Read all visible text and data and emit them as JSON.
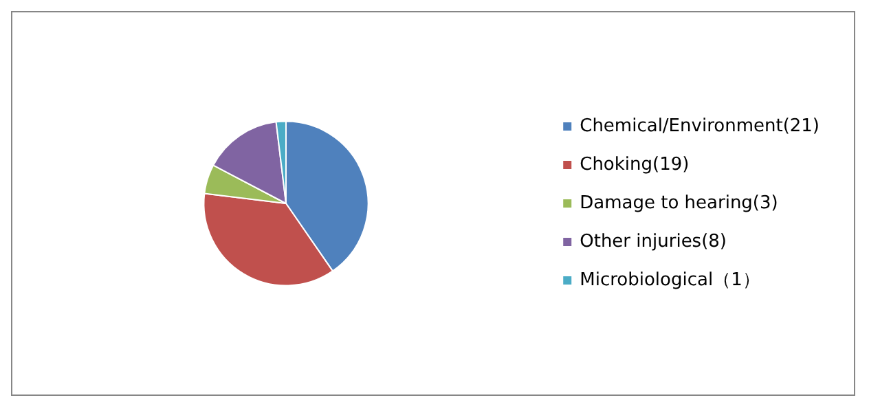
{
  "chart_data": {
    "type": "pie",
    "categories": [
      "Chemical/Environment(21)",
      "Choking(19)",
      "Damage to hearing(3)",
      "Other injuries(8)",
      "Microbiological（1）"
    ],
    "values": [
      21,
      19,
      3,
      8,
      1
    ],
    "colors": [
      "#4f81bd",
      "#c0504d",
      "#9bbb59",
      "#8064a2",
      "#4bacc6"
    ],
    "legend": "right"
  }
}
